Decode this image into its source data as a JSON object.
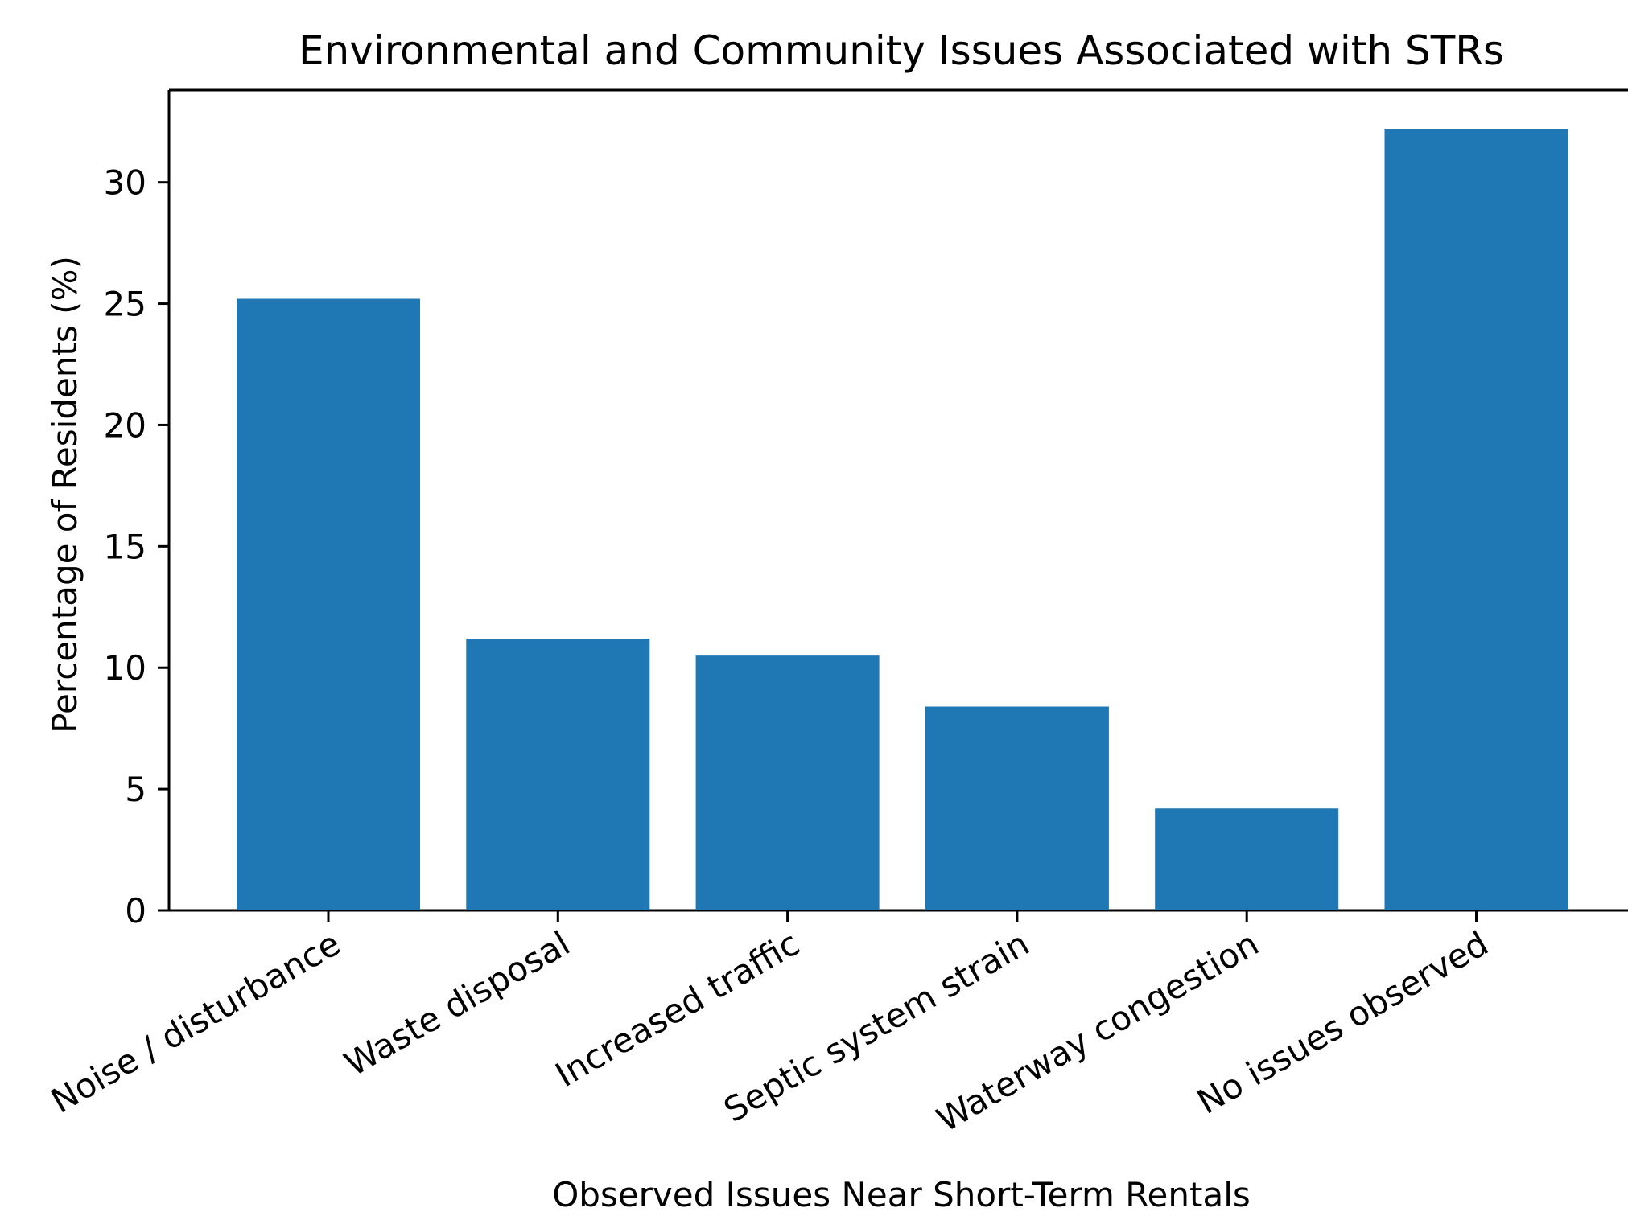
{
  "chart_data": {
    "type": "bar",
    "title": "Environmental and Community Issues Associated with STRs",
    "xlabel": "Observed Issues Near Short-Term Rentals",
    "ylabel": "Percentage of Residents (%)",
    "categories": [
      "Noise / disturbance",
      "Waste disposal",
      "Increased traffic",
      "Septic system strain",
      "Waterway congestion",
      "No issues observed"
    ],
    "values": [
      25.2,
      11.2,
      10.5,
      8.4,
      4.2,
      32.2
    ],
    "yticks": [
      0,
      5,
      10,
      15,
      20,
      25,
      30
    ],
    "ylim": [
      0,
      33.8
    ],
    "bar_color": "#1f77b4",
    "grid": false
  }
}
